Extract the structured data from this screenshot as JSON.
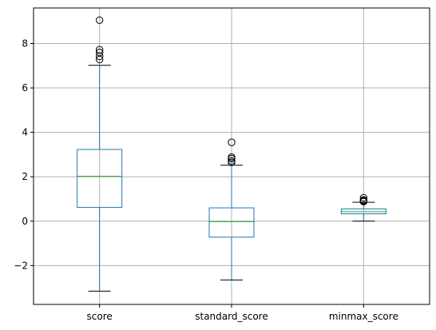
{
  "chart_data": {
    "type": "boxplot",
    "title": "",
    "xlabel": "",
    "ylabel": "",
    "grid": true,
    "ylim": [
      -3.75,
      9.6
    ],
    "yticks": [
      -2,
      0,
      2,
      4,
      6,
      8
    ],
    "categories": [
      "score",
      "standard_score",
      "minmax_score"
    ],
    "boxes": [
      {
        "name": "score",
        "whisker_low": -3.15,
        "q1": 0.62,
        "median": 2.02,
        "q3": 3.23,
        "whisker_high": 7.02,
        "outliers": [
          7.28,
          7.42,
          7.6,
          7.72,
          9.05
        ]
      },
      {
        "name": "standard_score",
        "whisker_low": -2.65,
        "q1": -0.72,
        "median": -0.02,
        "q3": 0.6,
        "whisker_high": 2.52,
        "outliers": [
          2.65,
          2.72,
          2.82,
          2.88,
          3.55
        ]
      },
      {
        "name": "minmax_score",
        "whisker_low": 0.0,
        "q1": 0.33,
        "median": 0.43,
        "q3": 0.55,
        "whisker_high": 0.85,
        "outliers": [
          0.88,
          0.9,
          0.93,
          0.95,
          1.05
        ]
      }
    ],
    "colors": {
      "box": "#1f77b4",
      "median": "#2ca02c",
      "whisker_cap": "#000000",
      "outlier": "#000000",
      "grid": "#b0b0b0",
      "axes": "#000000"
    }
  }
}
